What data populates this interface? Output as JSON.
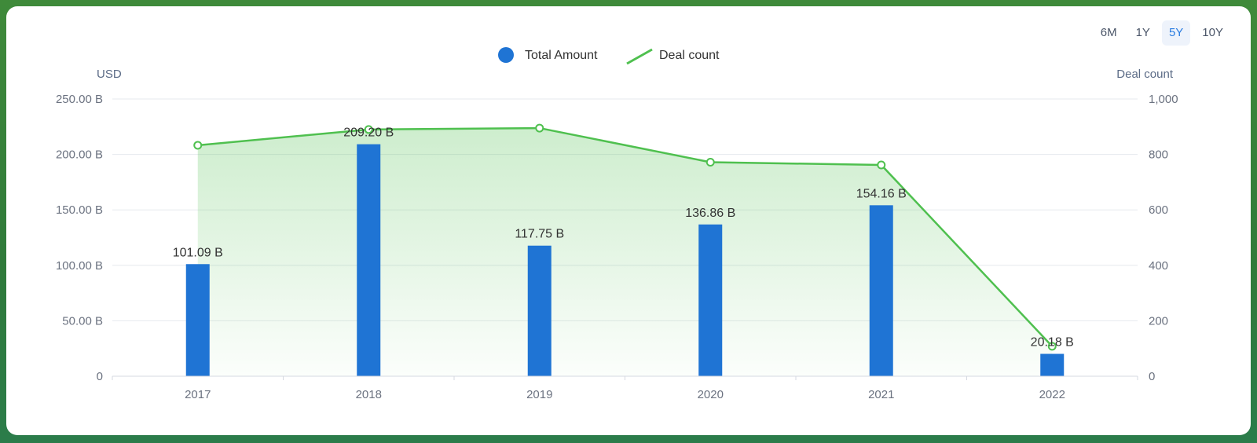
{
  "range_buttons": [
    {
      "label": "6M",
      "active": false
    },
    {
      "label": "1Y",
      "active": false
    },
    {
      "label": "5Y",
      "active": true
    },
    {
      "label": "10Y",
      "active": false
    }
  ],
  "chart_data": {
    "type": "bar",
    "categories": [
      "2017",
      "2018",
      "2019",
      "2020",
      "2021",
      "2022"
    ],
    "series": [
      {
        "name": "Total Amount",
        "type": "bar",
        "axis": "left",
        "color": "#1f74d4",
        "values": [
          101.09,
          209.2,
          117.75,
          136.86,
          154.16,
          20.18
        ],
        "labels": [
          "101.09 B",
          "209.20 B",
          "117.75 B",
          "136.86 B",
          "154.16 B",
          "20.18 B"
        ]
      },
      {
        "name": "Deal count",
        "type": "line",
        "axis": "right",
        "color": "#4fc04f",
        "values": [
          833,
          890,
          895,
          772,
          762,
          108
        ]
      }
    ],
    "y_left": {
      "label": "USD",
      "range": [
        0,
        250
      ],
      "ticks": [
        0,
        50,
        100,
        150,
        200,
        250
      ],
      "tick_labels": [
        "0",
        "50.00 B",
        "100.00 B",
        "150.00 B",
        "200.00 B",
        "250.00 B"
      ]
    },
    "y_right": {
      "label": "Deal count",
      "range": [
        0,
        1000
      ],
      "ticks": [
        0,
        200,
        400,
        600,
        800,
        1000
      ],
      "tick_labels": [
        "0",
        "200",
        "400",
        "600",
        "800",
        "1,000"
      ]
    },
    "legend_position": "top-center",
    "grid": true
  }
}
